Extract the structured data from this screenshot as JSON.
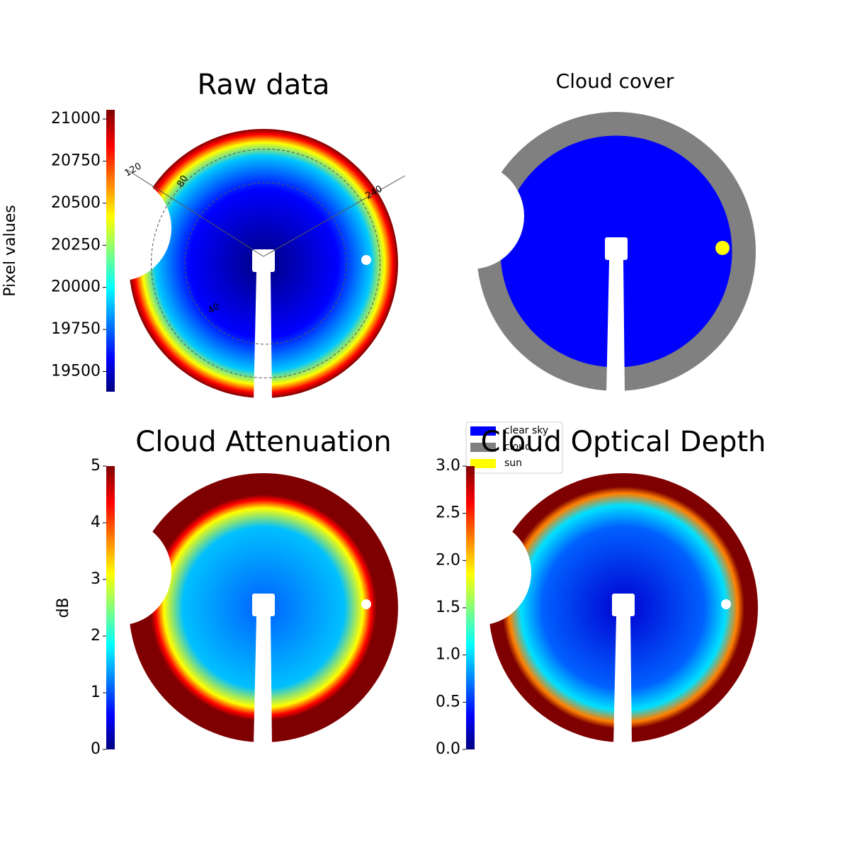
{
  "chart_data": [
    {
      "type": "image",
      "title": "Raw data",
      "colorbar": {
        "label": "Pixel values",
        "lim": [
          19380,
          21055
        ],
        "ticks": [
          19500,
          19750,
          20000,
          20250,
          20500,
          20750,
          21000
        ]
      },
      "polar_labels": [
        "120",
        "80",
        "240",
        "40"
      ]
    },
    {
      "type": "image",
      "title": "Cloud cover",
      "legend": [
        {
          "name": "clear sky",
          "color": "#0000ff"
        },
        {
          "name": "cloud",
          "color": "#808080"
        },
        {
          "name": "sun",
          "color": "#ffff00"
        }
      ]
    },
    {
      "type": "image",
      "title": "Cloud Attenuation",
      "colorbar": {
        "label": "dB",
        "lim": [
          0,
          5
        ],
        "ticks": [
          0,
          1,
          2,
          3,
          4,
          5
        ]
      }
    },
    {
      "type": "image",
      "title": "Cloud Optical Depth",
      "colorbar": {
        "lim": [
          0,
          3
        ],
        "ticks": [
          {
            "value": 0,
            "label": "0.0"
          },
          {
            "value": 0.5,
            "label": "0.5"
          },
          {
            "value": 1,
            "label": "1.0"
          },
          {
            "value": 1.5,
            "label": "1.5"
          },
          {
            "value": 2,
            "label": "2.0"
          },
          {
            "value": 2.5,
            "label": "2.5"
          },
          {
            "value": 3,
            "label": "3.0"
          }
        ]
      }
    }
  ]
}
